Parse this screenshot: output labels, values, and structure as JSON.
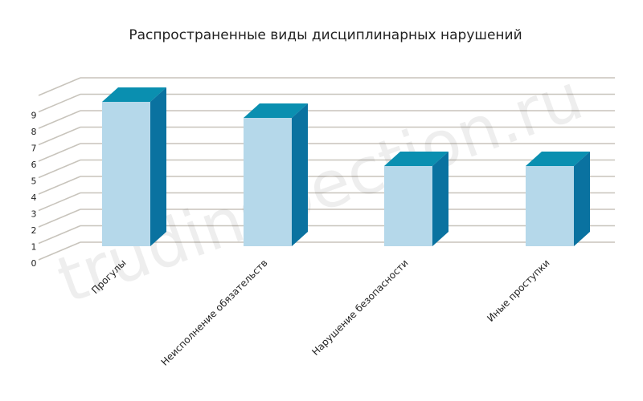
{
  "chart_data": {
    "type": "bar3d",
    "title": "Распространенные виды дисциплинарных нарушений",
    "watermark": "trudinspection.ru",
    "categories": [
      "Прогулы",
      "Неисполнение обязательств",
      "Нарушение безопасности",
      "Иные проступки"
    ],
    "values": [
      9,
      8,
      5,
      5
    ],
    "colors": {
      "front": "#b5d8ea",
      "top": "#0a8fb0",
      "side": "#0a72a0"
    },
    "ylim": [
      0,
      10
    ],
    "yticks": [
      0,
      1,
      2,
      3,
      4,
      5,
      6,
      7,
      8,
      9
    ],
    "grid": true
  }
}
